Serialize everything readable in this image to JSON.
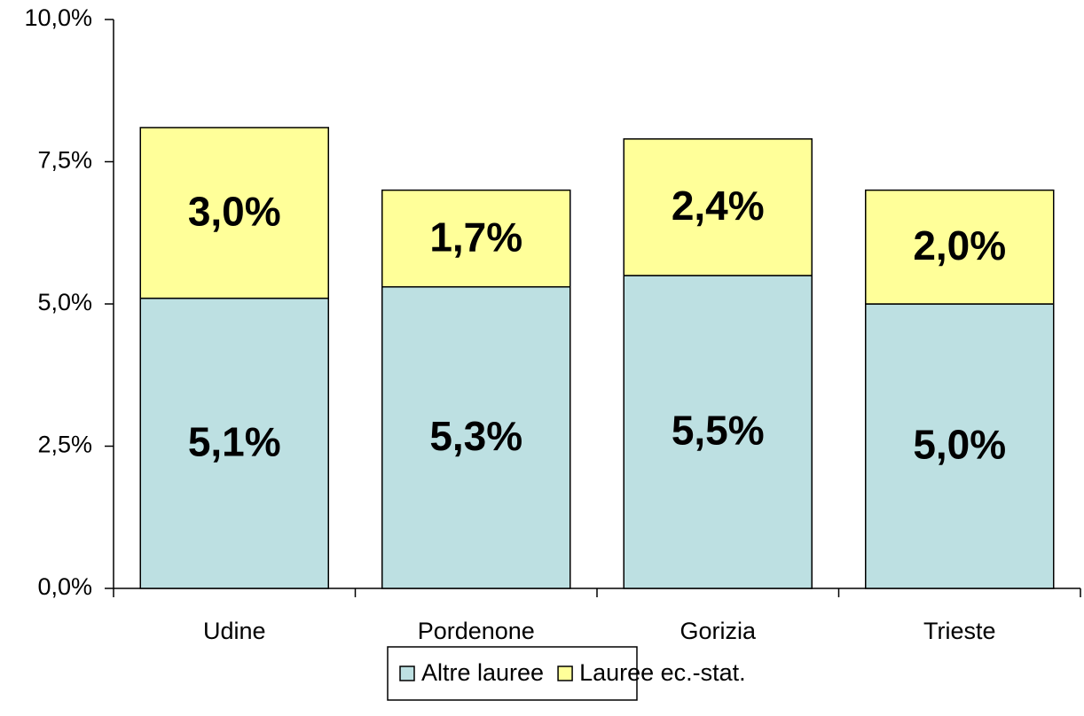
{
  "chart_data": {
    "type": "stacked_bar",
    "categories": [
      "Udine",
      "Pordenone",
      "Gorizia",
      "Trieste"
    ],
    "series": [
      {
        "name": "Altre lauree",
        "color": "#bde0e2",
        "values": [
          5.1,
          5.3,
          5.5,
          5.0
        ],
        "value_labels": [
          "5,1%",
          "5,3%",
          "5,5%",
          "5,0%"
        ]
      },
      {
        "name": "Lauree ec.-stat.",
        "color": "#ffff99",
        "values": [
          3.0,
          1.7,
          2.4,
          2.0
        ],
        "value_labels": [
          "3,0%",
          "1,7%",
          "2,4%",
          "2,0%"
        ]
      }
    ],
    "ylim": [
      0,
      10
    ],
    "yticks": [
      {
        "value": 0,
        "label": "0,0%"
      },
      {
        "value": 2.5,
        "label": "2,5%"
      },
      {
        "value": 5,
        "label": "5,0%"
      },
      {
        "value": 7.5,
        "label": "7,5%"
      },
      {
        "value": 10,
        "label": "10,0%"
      }
    ],
    "grid": false,
    "legend": "bottom"
  }
}
